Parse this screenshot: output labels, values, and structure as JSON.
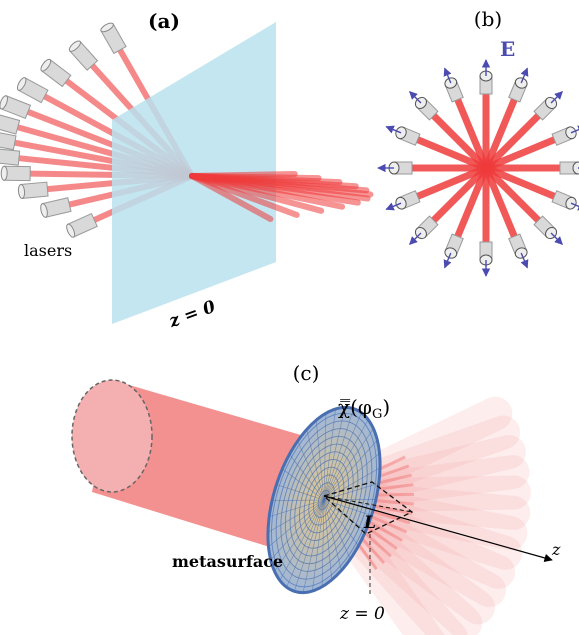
{
  "panels": {
    "a": {
      "label": "(a)",
      "lasers_label": "lasers",
      "plane_label": "z = 0"
    },
    "b": {
      "label": "(b)",
      "field_label": "E"
    },
    "c": {
      "label": "(c)",
      "chi_label": "χ̿(φ",
      "chi_sub": "G",
      "chi_close": ")",
      "metasurface_label": "metasurface",
      "length_label": "L",
      "axis_label": "z",
      "plane_label": "z = 0"
    }
  },
  "colors": {
    "beam": "#ee3b3b",
    "beam_light": "#f59a9a",
    "plane": "#b8e2ee",
    "laser_body": "#d9d9d9",
    "field_arrow": "#4b4bb0",
    "metasurface": "#4a6fb0",
    "metasurface_grid": "#c9a65a"
  }
}
